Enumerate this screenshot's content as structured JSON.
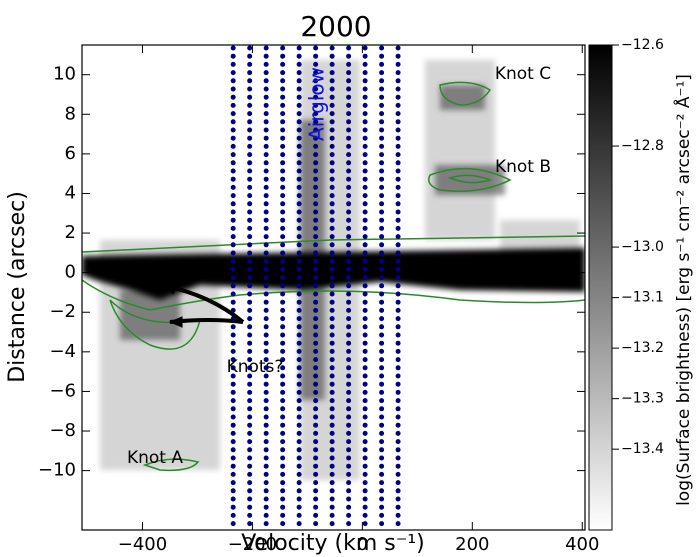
{
  "chart_data": {
    "type": "heatmap",
    "title": "2000",
    "x_label": "Velocity (km s⁻¹)",
    "y_label": "Distance (arcsec)",
    "xlim": [
      -510,
      405
    ],
    "xticks": [
      {
        "value": -400,
        "label": "−400"
      },
      {
        "value": -200,
        "label": "−200"
      },
      0,
      200,
      400
    ],
    "ylim": [
      -13,
      11.5
    ],
    "yticks": [
      {
        "value": -10,
        "label": "−10"
      },
      {
        "value": -8,
        "label": "−8"
      },
      {
        "value": -6,
        "label": "−6"
      },
      {
        "value": -4,
        "label": "−4"
      },
      {
        "value": -2,
        "label": "−2"
      },
      0,
      2,
      4,
      6,
      8,
      10
    ],
    "grid": false,
    "colorbar": {
      "label": "log(Surface brightness) [erg s⁻¹ cm⁻² arcsec⁻² Å⁻¹]",
      "clim": [
        -13.56,
        -12.6
      ],
      "ticks": [
        {
          "value": -12.6,
          "label": "−12.6"
        },
        {
          "value": -12.8,
          "label": "−12.8"
        },
        {
          "value": -13.0,
          "label": "−13.0"
        },
        {
          "value": -13.1,
          "label": "−13.1"
        },
        {
          "value": -13.2,
          "label": "−13.2"
        },
        {
          "value": -13.3,
          "label": "−13.3"
        },
        {
          "value": -13.4,
          "label": "−13.4"
        }
      ]
    },
    "airglow_lines": {
      "color": "#000080",
      "x": [
        -235,
        -205,
        -175,
        -145,
        -115,
        -85,
        -55,
        -25,
        5,
        35,
        65
      ]
    },
    "annotations": [
      "Airglow",
      "Knot C",
      "Knot B",
      "Knots?",
      "Knot A"
    ]
  }
}
